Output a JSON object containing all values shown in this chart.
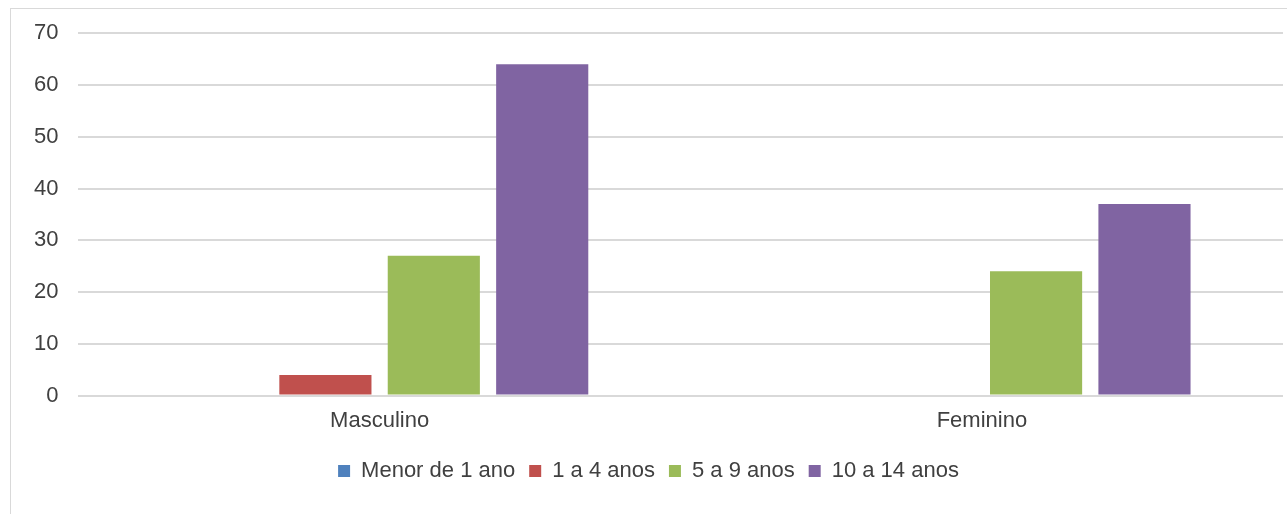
{
  "chart_data": {
    "type": "bar",
    "categories": [
      "Masculino",
      "Feminino"
    ],
    "series": [
      {
        "name": "Menor de 1 ano",
        "color": "#4f81bd",
        "values": [
          0,
          0
        ]
      },
      {
        "name": "1 a 4 anos",
        "color": "#c0504d",
        "values": [
          4,
          0
        ]
      },
      {
        "name": "5 a 9 anos",
        "color": "#9bbb59",
        "values": [
          27,
          24
        ]
      },
      {
        "name": "10 a 14 anos",
        "color": "#8064a2",
        "values": [
          64,
          37
        ]
      }
    ],
    "ylim": [
      0,
      70
    ],
    "yticks": [
      0,
      10,
      20,
      30,
      40,
      50,
      60,
      70
    ],
    "grid": "y",
    "legend": "bottom"
  }
}
